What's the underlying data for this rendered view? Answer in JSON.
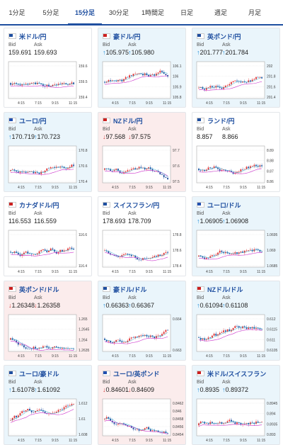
{
  "tabs": [
    {
      "label": "1分足",
      "active": false
    },
    {
      "label": "5分足",
      "active": false
    },
    {
      "label": "15分足",
      "active": true
    },
    {
      "label": "30分足",
      "active": false
    },
    {
      "label": "1時間足",
      "active": false
    },
    {
      "label": "日足",
      "active": false
    },
    {
      "label": "週足",
      "active": false
    },
    {
      "label": "月足",
      "active": false
    }
  ],
  "labels": {
    "bid": "Bid",
    "ask": "Ask"
  },
  "colors": {
    "accent": "#1f4fa0",
    "up": "#1a8cd8",
    "down": "#d04040",
    "candle_up": "#e03030",
    "candle_down": "#1f4fa0",
    "ma": "#cc33cc",
    "ma2": "#33aacc"
  },
  "pairs": [
    {
      "name": "米ドル/円",
      "dir": "none",
      "bid": "159.691",
      "ask": "159.693",
      "yticks": [
        "159.6",
        "159.5",
        "159.4"
      ],
      "xticks": [
        "4:15",
        "7:15",
        "9:15",
        "11:15"
      ]
    },
    {
      "name": "豪ドル/円",
      "dir": "up",
      "bid": "105.975",
      "ask": "105.980",
      "yticks": [
        "106.1",
        "106",
        "105.9",
        "105.8"
      ],
      "xticks": [
        "4:15",
        "7:15",
        "9:15",
        "11:15"
      ]
    },
    {
      "name": "英ポンド/円",
      "dir": "up",
      "bid": "201.777",
      "ask": "201.784",
      "yticks": [
        "202",
        "201.8",
        "201.6",
        "201.4"
      ],
      "xticks": [
        "4:15",
        "7:15",
        "9:15",
        "11:15"
      ]
    },
    {
      "name": "ユーロ/円",
      "dir": "up",
      "bid": "170.719",
      "ask": "170.723",
      "yticks": [
        "170.8",
        "170.6",
        "170.4"
      ],
      "xticks": [
        "4:15",
        "7:15",
        "9:15",
        "11:15"
      ]
    },
    {
      "name": "NZドル/円",
      "dir": "down",
      "bid": "97.568",
      "ask": "97.575",
      "yticks": [
        "97.7",
        "97.6",
        "97.5"
      ],
      "xticks": [
        "4:15",
        "7:15",
        "9:15",
        "11:15"
      ]
    },
    {
      "name": "ランド/円",
      "dir": "none",
      "bid": "8.857",
      "ask": "8.866",
      "yticks": [
        "8.89",
        "8.88",
        "8.87",
        "8.86"
      ],
      "xticks": [
        "4:15",
        "7:15",
        "9:15",
        "11:15"
      ]
    },
    {
      "name": "カナダドル/円",
      "dir": "none",
      "bid": "116.553",
      "ask": "116.559",
      "yticks": [
        "116.6",
        "116.4"
      ],
      "xticks": [
        "4:15",
        "7:15",
        "9:15",
        "11:15"
      ]
    },
    {
      "name": "スイスフラン/円",
      "dir": "none",
      "bid": "178.693",
      "ask": "178.709",
      "yticks": [
        "178.8",
        "178.6",
        "178.4"
      ],
      "xticks": [
        "4:15",
        "7:15",
        "9:15",
        "11:15"
      ]
    },
    {
      "name": "ユーロ/ドル",
      "dir": "up",
      "bid": "1.06905",
      "ask": "1.06908",
      "yticks": [
        "1.0695",
        "1.069",
        "1.0685"
      ],
      "xticks": [
        "4:15",
        "7:15",
        "9:15",
        "11:15"
      ]
    },
    {
      "name": "英ポンド/ドル",
      "dir": "down",
      "bid": "1.26348",
      "ask": "1.26358",
      "yticks": [
        "1.265",
        "1.2645",
        "1.264",
        "1.2635"
      ],
      "xticks": [
        "4:15",
        "7:15",
        "9:15",
        "11:15"
      ]
    },
    {
      "name": "豪ドル/ドル",
      "dir": "up",
      "bid": "0.66363",
      "ask": "0.66367",
      "yticks": [
        "0.664",
        "0.663"
      ],
      "xticks": [
        "4:15",
        "7:15",
        "9:15",
        "11:15"
      ]
    },
    {
      "name": "NZドル/ドル",
      "dir": "up",
      "bid": "0.61094",
      "ask": "0.61108",
      "yticks": [
        "0.612",
        "0.6115",
        "0.611",
        "0.6105"
      ],
      "xticks": [
        "4:15",
        "7:15",
        "9:15",
        "11:15"
      ]
    },
    {
      "name": "ユーロ/豪ドル",
      "dir": "up",
      "bid": "1.61078",
      "ask": "1.61092",
      "yticks": [
        "1.612",
        "1.61",
        "1.608"
      ],
      "xticks": [
        "4:15",
        "7:15",
        "9:15",
        "11:15"
      ]
    },
    {
      "name": "ユーロ/英ポンド",
      "dir": "down",
      "bid": "0.84601",
      "ask": "0.84609",
      "yticks": [
        "0.8462",
        "0.846",
        "0.8458",
        "0.8456",
        "0.8454"
      ],
      "xticks": [
        "4:15",
        "7:15",
        "9:15",
        "11:15"
      ]
    },
    {
      "name": "米ドル/スイスフラン",
      "dir": "up",
      "bid": "0.8935",
      "ask": "0.89372",
      "yticks": [
        "0.8945",
        "0.894",
        "0.8935",
        "0.893"
      ],
      "xticks": [
        "4:15",
        "7:15",
        "9:15",
        "11:15"
      ]
    }
  ]
}
